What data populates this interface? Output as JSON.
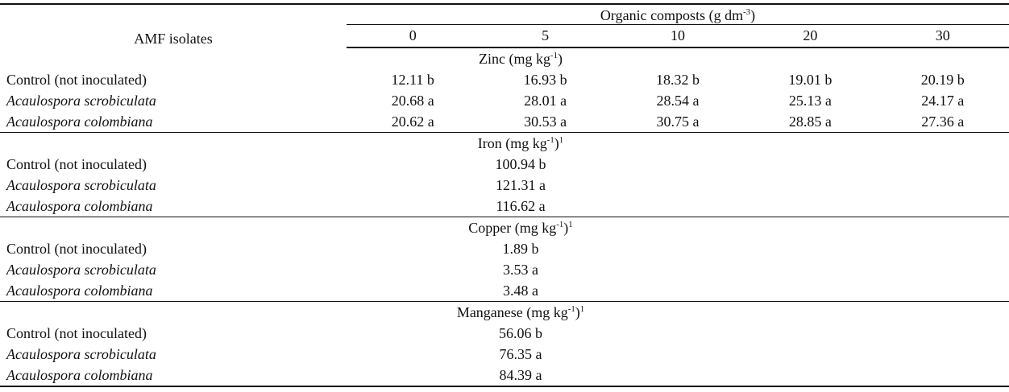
{
  "table": {
    "corner_header": "AMF isolates",
    "group_header": {
      "text": "Organic composts (g dm",
      "sup": "-3",
      "close": ")"
    },
    "dose_columns": [
      "0",
      "5",
      "10",
      "20",
      "30"
    ],
    "sections": [
      {
        "title": {
          "text": "Zinc (mg kg",
          "sup": "-1",
          "close": ")",
          "footnote": ""
        },
        "rows": [
          {
            "label": "Control (not inoculated)",
            "values": [
              "12.11 b",
              "16.93 b",
              "18.32 b",
              "19.01 b",
              "20.19 b"
            ]
          },
          {
            "label": "Acaulospora scrobiculata",
            "values": [
              "20.68 a",
              "28.01 a",
              "28.54 a",
              "25.13 a",
              "24.17 a"
            ]
          },
          {
            "label": "Acaulospora colombiana",
            "values": [
              "20.62 a",
              "30.53 a",
              "30.75 a",
              "28.85 a",
              "27.36 a"
            ]
          }
        ]
      },
      {
        "title": {
          "text": "Iron (mg kg",
          "sup": "-1",
          "close": ")",
          "footnote": "1"
        },
        "rows": [
          {
            "label": "Control (not inoculated)",
            "value": "100.94 b"
          },
          {
            "label": "Acaulospora scrobiculata",
            "value": "121.31 a"
          },
          {
            "label": "Acaulospora colombiana",
            "value": "116.62 a"
          }
        ]
      },
      {
        "title": {
          "text": "Copper (mg kg",
          "sup": "-1",
          "close": ")",
          "footnote": "1"
        },
        "rows": [
          {
            "label": "Control (not inoculated)",
            "value": "1.89 b"
          },
          {
            "label": "Acaulospora scrobiculata",
            "value": "3.53 a"
          },
          {
            "label": "Acaulospora colombiana",
            "value": "3.48 a"
          }
        ]
      },
      {
        "title": {
          "text": "Manganese (mg kg",
          "sup": "-1",
          "close": ")",
          "footnote": "1"
        },
        "rows": [
          {
            "label": "Control (not inoculated)",
            "value": "56.06 b"
          },
          {
            "label": "Acaulospora scrobiculata",
            "value": "76.35 a"
          },
          {
            "label": "Acaulospora colombiana",
            "value": "84.39 a"
          }
        ]
      }
    ]
  }
}
